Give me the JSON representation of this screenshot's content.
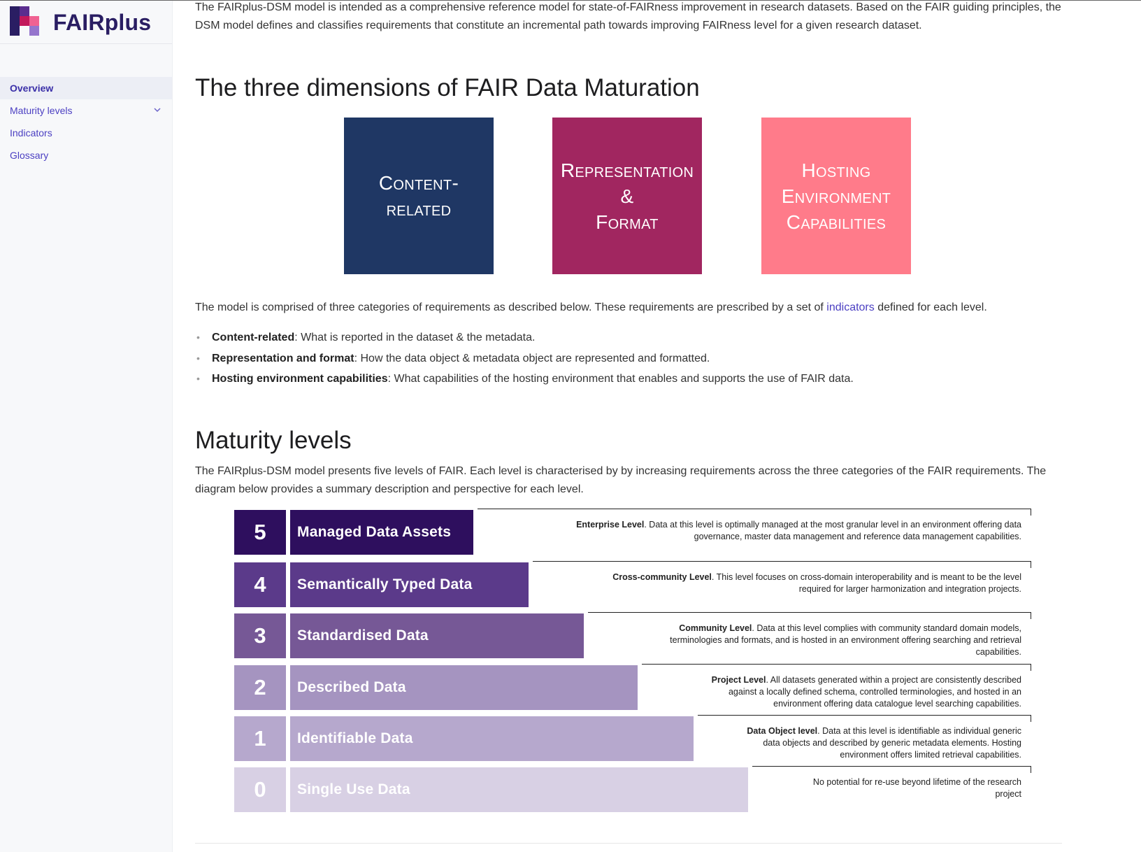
{
  "brand": {
    "name": "FAIRplus"
  },
  "nav": {
    "items": [
      {
        "label": "Overview",
        "active": true
      },
      {
        "label": "Maturity levels",
        "has_children": true
      },
      {
        "label": "Indicators"
      },
      {
        "label": "Glossary"
      }
    ]
  },
  "content": {
    "intro": "The FAIRplus-DSM model is intended as a comprehensive reference model for state-of-FAIRness improvement in research datasets. Based on the FAIR guiding principles, the DSM model defines and classifies requirements that constitute an incremental path towards improving FAIRness level for a given research dataset.",
    "dimensions_heading": "The three dimensions of FAIR Data Maturation",
    "dimensions": [
      {
        "line1": "Content-",
        "line2": "related",
        "line3": "",
        "color": "#1f3764"
      },
      {
        "line1": "Representation",
        "line2": "&",
        "line3": "Format",
        "color": "#a12660"
      },
      {
        "line1": "Hosting",
        "line2": "Environment",
        "line3": "Capabilities",
        "color": "#ff7b8a"
      }
    ],
    "model_text_before": "The model is comprised of three categories of requirements as described below. These requirements are prescribed by a set of ",
    "model_link": "indicators",
    "model_text_after": " defined for each level.",
    "bullets": [
      {
        "term": "Content-related",
        "text": ": What is reported in the dataset & the metadata."
      },
      {
        "term": "Representation and format",
        "text": ": How the data object & metadata object are represented and formatted."
      },
      {
        "term": "Hosting environment capabilities",
        "text": ": What capabilities of the hosting environment that enables and supports the use of FAIR data."
      }
    ],
    "maturity_heading": "Maturity levels",
    "maturity_text": "The FAIRplus-DSM model presents five levels of FAIR. Each level is characterised by by increasing requirements across the three categories of the FAIR requirements. The diagram below provides a summary description and perspective for each level."
  },
  "levels": [
    {
      "num": "5",
      "name": "Managed Data Assets",
      "color": "#2e0f5e",
      "desc_bold": "Enterprise Level",
      "desc_lines": [
        "Data at this level is optimally managed at the most granular level in an environment offering data",
        "governance, master data management and reference data management capabilities."
      ]
    },
    {
      "num": "4",
      "name": "Semantically Typed Data",
      "color": "#5b3a8a",
      "desc_bold": "Cross-community Level",
      "desc_lines": [
        "This level focuses on cross-domain interoperability and is meant to be the level",
        "required for larger harmonization and integration projects."
      ]
    },
    {
      "num": "3",
      "name": "Standardised Data",
      "color": "#765896",
      "desc_bold": "Community Level",
      "desc_lines": [
        "Data at this level complies with community standard domain models,",
        "terminologies and formats, and is hosted in an environment offering searching and retrieval",
        "capabilities."
      ]
    },
    {
      "num": "2",
      "name": "Described Data",
      "color": "#a594c0",
      "desc_bold": "Project Level",
      "desc_lines": [
        "All datasets generated within a project are consistently described",
        "against a locally defined schema, controlled terminologies, and hosted in an",
        "environment offering data catalogue level searching capabilities."
      ]
    },
    {
      "num": "1",
      "name": "Identifiable Data",
      "color": "#b6a8cd",
      "desc_bold": "Data Object level",
      "desc_lines": [
        "Data at this level is identifiable as individual generic",
        "data objects and described by generic metadata elements. Hosting",
        "environment offers limited retrieval capabilities."
      ]
    },
    {
      "num": "0",
      "name": "Single Use Data",
      "color": "#d8d0e4",
      "desc_bold": "",
      "desc_lines": [
        "No potential for re-use beyond lifetime of the research",
        "project"
      ]
    }
  ]
}
